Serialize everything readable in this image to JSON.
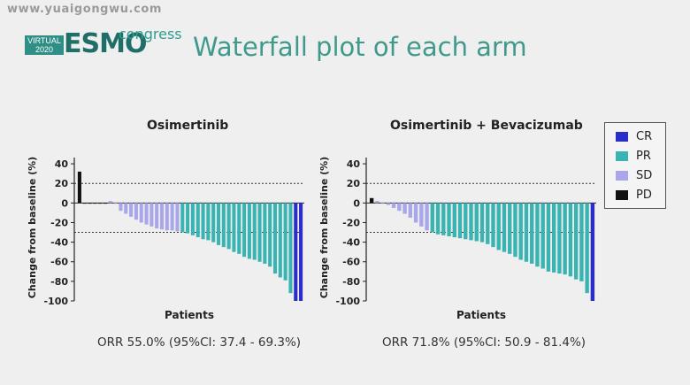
{
  "watermark": "www.yuaigongwu.com",
  "logo": {
    "virtual": "VIRTUAL",
    "year": "2020",
    "esmo": "ESMO",
    "congress": "congress"
  },
  "slide_title": "Waterfall plot of each arm",
  "colors": {
    "CR": "#2a2ec6",
    "PR": "#3ab3b3",
    "SD": "#a9a6ea",
    "PD": "#111111"
  },
  "legend": [
    {
      "label": "CR",
      "key": "CR"
    },
    {
      "label": "PR",
      "key": "PR"
    },
    {
      "label": "SD",
      "key": "SD"
    },
    {
      "label": "PD",
      "key": "PD"
    }
  ],
  "chart_data": [
    {
      "type": "bar",
      "title": "Osimertinib",
      "xlabel": "Patients",
      "ylabel": "Change from baseline (%)",
      "ylim": [
        -100,
        50
      ],
      "yticks": [
        40,
        20,
        0,
        -20,
        -40,
        -60,
        -80,
        -100
      ],
      "reference_lines": [
        20,
        -30
      ],
      "orr": "ORR 55.0% (95%CI: 37.4 - 69.3%)",
      "values": [
        32,
        0,
        0,
        0,
        0,
        0,
        2,
        0,
        -8,
        -11,
        -14,
        -17,
        -20,
        -22,
        -24,
        -26,
        -27,
        -28,
        -28,
        -29,
        -30,
        -31,
        -33,
        -35,
        -37,
        -38,
        -40,
        -43,
        -45,
        -47,
        -50,
        -52,
        -55,
        -57,
        -58,
        -60,
        -62,
        -65,
        -72,
        -76,
        -79,
        -92,
        -100,
        -100
      ],
      "categories": [
        "PD",
        "PD",
        "PD",
        "PD",
        "PD",
        "PD",
        "SD",
        "SD",
        "SD",
        "SD",
        "SD",
        "SD",
        "SD",
        "SD",
        "SD",
        "SD",
        "SD",
        "SD",
        "SD",
        "SD",
        "PR",
        "PR",
        "PR",
        "PR",
        "PR",
        "PR",
        "PR",
        "PR",
        "PR",
        "PR",
        "PR",
        "PR",
        "PR",
        "PR",
        "PR",
        "PR",
        "PR",
        "PR",
        "PR",
        "PR",
        "PR",
        "PR",
        "CR",
        "CR"
      ]
    },
    {
      "type": "bar",
      "title": "Osimertinib + Bevacizumab",
      "xlabel": "Patients",
      "ylabel": "Change from baseline (%)",
      "ylim": [
        -100,
        50
      ],
      "yticks": [
        40,
        20,
        0,
        -20,
        -40,
        -60,
        -80,
        -100
      ],
      "reference_lines": [
        20,
        -30
      ],
      "orr": "ORR 71.8% (95%CI: 50.9 - 81.4%)",
      "values": [
        5,
        2,
        0,
        -2,
        -5,
        -8,
        -11,
        -15,
        -20,
        -24,
        -28,
        -30,
        -32,
        -33,
        -34,
        -35,
        -36,
        -37,
        -38,
        -39,
        -40,
        -42,
        -45,
        -48,
        -50,
        -52,
        -55,
        -58,
        -60,
        -62,
        -65,
        -67,
        -70,
        -71,
        -72,
        -73,
        -75,
        -78,
        -80,
        -92,
        -100
      ],
      "categories": [
        "PD",
        "SD",
        "SD",
        "SD",
        "SD",
        "SD",
        "SD",
        "SD",
        "SD",
        "SD",
        "SD",
        "PR",
        "PR",
        "PR",
        "PR",
        "PR",
        "PR",
        "PR",
        "PR",
        "PR",
        "PR",
        "PR",
        "PR",
        "PR",
        "PR",
        "PR",
        "PR",
        "PR",
        "PR",
        "PR",
        "PR",
        "PR",
        "PR",
        "PR",
        "PR",
        "PR",
        "PR",
        "PR",
        "PR",
        "PR",
        "CR"
      ]
    }
  ]
}
